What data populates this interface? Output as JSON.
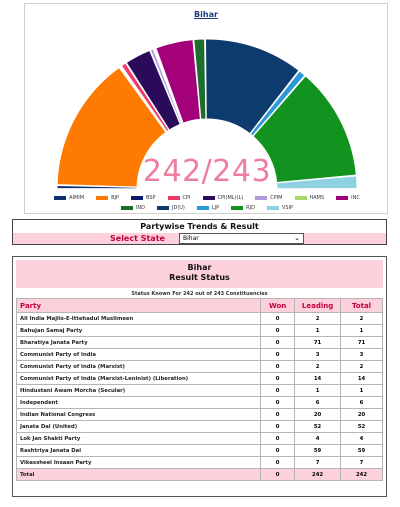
{
  "chart_title": "Bihar",
  "seat_count": "242/243",
  "chart_data": {
    "type": "pie",
    "categories": [
      "AIMIM",
      "BJP",
      "BSP",
      "CPI",
      "CPI(ML)(L)",
      "CPIM",
      "HAMS",
      "INC",
      "IND",
      "JD(U)",
      "LJP",
      "RJD",
      "VSIP"
    ],
    "values": [
      2,
      71,
      1,
      3,
      14,
      2,
      1,
      20,
      6,
      52,
      4,
      59,
      7
    ],
    "colors": [
      "#0f3070",
      "#ff7a00",
      "#0a1a6a",
      "#ee3a6a",
      "#2a0a5a",
      "#b49adc",
      "#a9d86a",
      "#a3007a",
      "#1c6e2a",
      "#0e3b6e",
      "#2b9ad6",
      "#12921e",
      "#8ed1e0"
    ],
    "hole_label": "242/243"
  },
  "legend": [
    [
      {
        "label": "AIMIM",
        "color": "#0f3070"
      },
      {
        "label": "BJP",
        "color": "#ff7a00"
      },
      {
        "label": "BSP",
        "color": "#0a1a6a"
      },
      {
        "label": "CPI",
        "color": "#ee3a6a"
      },
      {
        "label": "CPI(ML)(L)",
        "color": "#2a0a5a"
      },
      {
        "label": "CPIM",
        "color": "#b49adc"
      },
      {
        "label": "HAMS",
        "color": "#a9d86a"
      },
      {
        "label": "INC",
        "color": "#a3007a"
      }
    ],
    [
      {
        "label": "IND",
        "color": "#1c6e2a"
      },
      {
        "label": "JD(U)",
        "color": "#0e3b6e"
      },
      {
        "label": "LJP",
        "color": "#2b9ad6"
      },
      {
        "label": "RJD",
        "color": "#12921e"
      },
      {
        "label": "VSIP",
        "color": "#8ed1e0"
      }
    ]
  ],
  "trends": {
    "title": "Partywise Trends & Result",
    "select_label": "Select State",
    "selected_state": "Bihar"
  },
  "result": {
    "state": "Bihar",
    "subtitle": "Result Status",
    "status_line": "Status Known For 242 out of 243 Constituencies",
    "headers": {
      "party": "Party",
      "won": "Won",
      "leading": "Leading",
      "total": "Total"
    },
    "rows": [
      {
        "party": "All India Majlis-E-Ittehadul Muslimeen",
        "won": "0",
        "leading": "2",
        "total": "2"
      },
      {
        "party": "Bahujan Samaj Party",
        "won": "0",
        "leading": "1",
        "total": "1"
      },
      {
        "party": "Bharatiya Janata Party",
        "won": "0",
        "leading": "71",
        "total": "71"
      },
      {
        "party": "Communist Party of India",
        "won": "0",
        "leading": "3",
        "total": "3"
      },
      {
        "party": "Communist Party of India (Marxist)",
        "won": "0",
        "leading": "2",
        "total": "2"
      },
      {
        "party": "Communist Party of India (Marxist-Leninist) (Liberation)",
        "won": "0",
        "leading": "14",
        "total": "14"
      },
      {
        "party": "Hindustani Awam Morcha (Secular)",
        "won": "0",
        "leading": "1",
        "total": "1"
      },
      {
        "party": "Independent",
        "won": "0",
        "leading": "6",
        "total": "6"
      },
      {
        "party": "Indian National Congress",
        "won": "0",
        "leading": "20",
        "total": "20"
      },
      {
        "party": "Janata Dal (United)",
        "won": "0",
        "leading": "52",
        "total": "52"
      },
      {
        "party": "Lok Jan Shakti Party",
        "won": "0",
        "leading": "4",
        "total": "4"
      },
      {
        "party": "Rashtriya Janata Dal",
        "won": "0",
        "leading": "59",
        "total": "59"
      },
      {
        "party": "Vikassheel Insaan Party",
        "won": "0",
        "leading": "7",
        "total": "7"
      }
    ],
    "total": {
      "party": "Total",
      "won": "0",
      "leading": "242",
      "total": "242"
    }
  }
}
